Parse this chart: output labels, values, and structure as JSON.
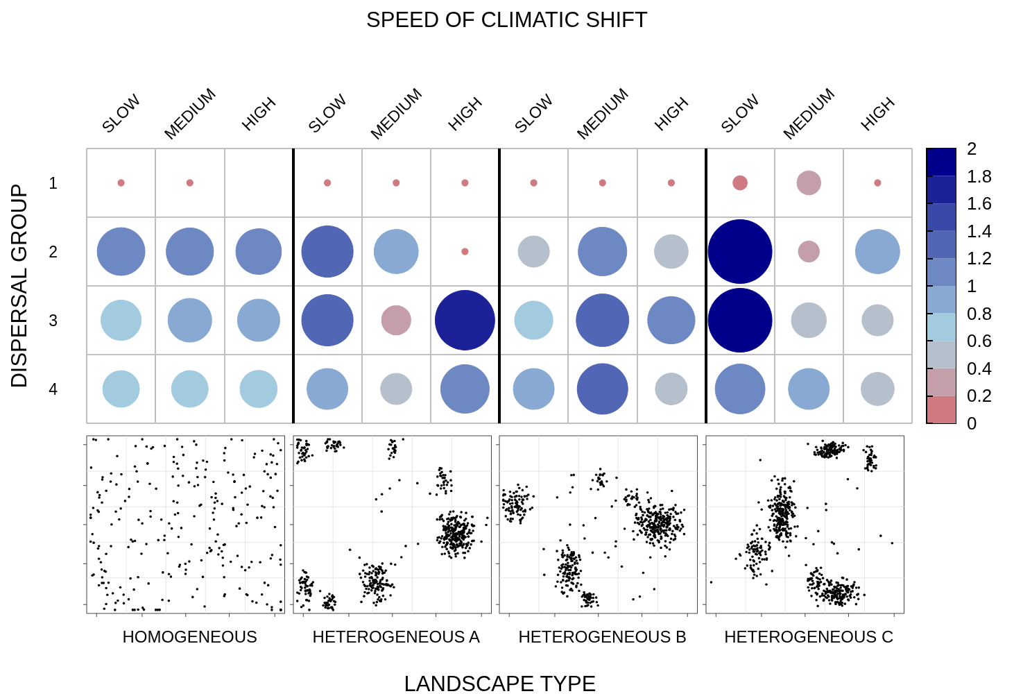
{
  "chart_data": {
    "type": "bubble",
    "title": "SPEED OF CLIMATIC SHIFT",
    "ylabel": "DISPERSAL GROUP",
    "categories": [
      "SLOW",
      "MEDIUM",
      "HIGH",
      "SLOW",
      "MEDIUM",
      "HIGH",
      "SLOW",
      "MEDIUM",
      "HIGH",
      "SLOW",
      "MEDIUM",
      "HIGH"
    ],
    "ylim": [
      4.5,
      0.5
    ],
    "yticks": [
      1,
      2,
      3,
      4
    ],
    "series": [
      {
        "values": [
          1,
          1,
          null,
          1,
          1,
          1,
          1,
          1,
          1,
          1,
          1,
          1
        ],
        "sizes": [
          0.01,
          0.01,
          null,
          0.01,
          0.01,
          0.01,
          0.01,
          0.01,
          0.01,
          0.05,
          0.14,
          0.01
        ],
        "cvalues": [
          0.1,
          0.1,
          null,
          0.1,
          0.1,
          0.1,
          0.1,
          0.1,
          0.1,
          0.1,
          0.3,
          0.1
        ],
        "colors": [
          "#cf7a80",
          "#cf7a80",
          null,
          "#cf7a80",
          "#cf7a80",
          "#cf7a80",
          "#cf7a80",
          "#cf7a80",
          "#cf7a80",
          "#cf7a80",
          "#c49ea8",
          "#cf7a80"
        ]
      },
      {
        "values": [
          2,
          2,
          2,
          2,
          2,
          2,
          2,
          2,
          2,
          2,
          2,
          2
        ],
        "sizes": [
          0.56,
          0.55,
          0.51,
          0.65,
          0.48,
          0.01,
          0.24,
          0.58,
          0.28,
          1,
          0.11,
          0.48
        ],
        "cvalues": [
          1.1,
          1.1,
          1.1,
          1.3,
          0.9,
          0.1,
          0.5,
          1.1,
          0.5,
          1.9,
          0.3,
          0.9
        ],
        "colors": [
          "#6e88c4",
          "#6e88c4",
          "#6e88c4",
          "#5166b5",
          "#88a9d2",
          "#cf7a80",
          "#b5c0cc",
          "#6e88c4",
          "#b5c0cc",
          "#00008b",
          "#c49ea8",
          "#88a9d2"
        ]
      },
      {
        "values": [
          3,
          3,
          3,
          3,
          3,
          3,
          3,
          3,
          3,
          3,
          3,
          3
        ],
        "sizes": [
          0.4,
          0.47,
          0.44,
          0.65,
          0.21,
          0.87,
          0.36,
          0.68,
          0.55,
          1,
          0.3,
          0.24
        ],
        "cvalues": [
          0.7,
          0.9,
          0.9,
          1.3,
          0.3,
          1.7,
          0.7,
          1.3,
          1.1,
          1.9,
          0.5,
          0.5
        ],
        "colors": [
          "#a3cbe0",
          "#88a9d2",
          "#88a9d2",
          "#5166b5",
          "#c49ea8",
          "#1c2197",
          "#a3cbe0",
          "#5166b5",
          "#6e88c4",
          "#00008b",
          "#b5c0cc",
          "#b5c0cc"
        ]
      },
      {
        "values": [
          4,
          4,
          4,
          4,
          4,
          4,
          4,
          4,
          4,
          4,
          4,
          4
        ],
        "sizes": [
          0.33,
          0.33,
          0.34,
          0.41,
          0.24,
          0.58,
          0.41,
          0.63,
          0.25,
          0.61,
          0.41,
          0.27
        ],
        "cvalues": [
          0.7,
          0.7,
          0.7,
          0.9,
          0.5,
          1.1,
          0.9,
          1.3,
          0.5,
          1.1,
          0.9,
          0.5
        ],
        "colors": [
          "#a3cbe0",
          "#a3cbe0",
          "#a3cbe0",
          "#88a9d2",
          "#b5c0cc",
          "#6e88c4",
          "#88a9d2",
          "#5166b5",
          "#b5c0cc",
          "#6e88c4",
          "#88a9d2",
          "#b5c0cc"
        ]
      }
    ],
    "clim": [
      0,
      2
    ],
    "cticks": [
      0,
      0.2,
      0.4,
      0.6,
      0.8,
      1,
      1.2,
      1.4,
      1.6,
      1.8,
      2
    ],
    "colors": [
      "#cf7a80",
      "#c49ea8",
      "#b5c0cc",
      "#a3cbe0",
      "#88a9d2",
      "#6e88c4",
      "#5166b5",
      "#3a48a8",
      "#1c2197",
      "#00008b"
    ],
    "annotations": [
      "HOMOGENEOUS",
      "HETEROGENEOUS A",
      "HETEROGENEOUS B",
      "HETEROGENEOUS C",
      "LANDSCAPE TYPE"
    ],
    "grid": true
  }
}
